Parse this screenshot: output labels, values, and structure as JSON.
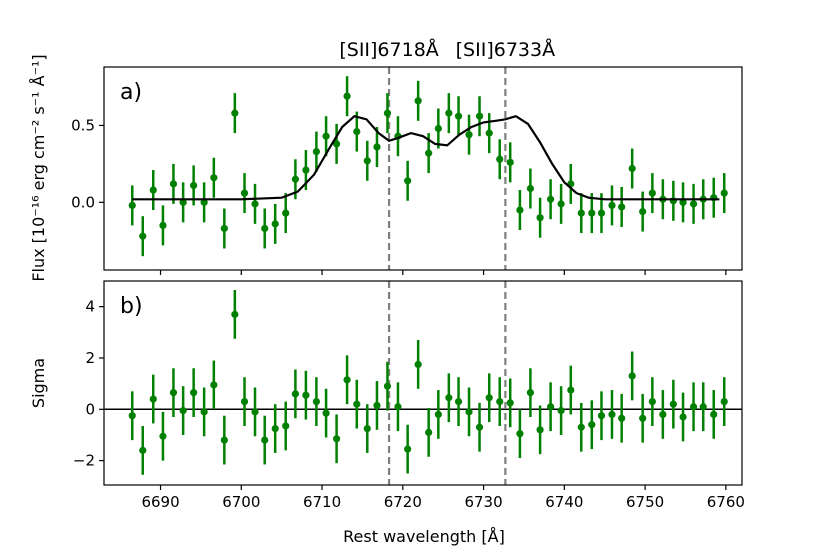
{
  "chart_data": {
    "type": "scatter",
    "xlabel_prefix": "Rest wavelength [",
    "xlabel_unit": "Å",
    "xlabel_suffix": "]",
    "xlim": [
      6683,
      6762
    ],
    "x_ticks": [
      6690,
      6700,
      6710,
      6720,
      6730,
      6740,
      6750,
      6760
    ],
    "x_tick_labels": [
      "6690",
      "6700",
      "6710",
      "6720",
      "6730",
      "6740",
      "6750",
      "6760"
    ],
    "emission_lines": [
      {
        "label": "[SII]6718Å",
        "x": 6718.3
      },
      {
        "label": "[SII]6733Å",
        "x": 6732.7
      }
    ],
    "panels": [
      {
        "panel_label": "a)",
        "ylabel": "Flux [10⁻¹⁶ erg cm⁻² s⁻¹ Å⁻¹]",
        "ylim": [
          -0.44,
          0.88
        ],
        "y_ticks": [
          0.0,
          0.5
        ],
        "y_tick_labels": [
          "0.0",
          "0.5"
        ],
        "points": {
          "x": [
            6686.5,
            6687.8,
            6689.1,
            6690.3,
            6691.6,
            6692.8,
            6694.1,
            6695.4,
            6696.6,
            6697.9,
            6699.2,
            6700.4,
            6701.7,
            6702.9,
            6704.2,
            6705.5,
            6706.7,
            6708.0,
            6709.3,
            6710.5,
            6711.8,
            6713.1,
            6714.3,
            6715.6,
            6716.8,
            6718.1,
            6719.4,
            6720.6,
            6721.9,
            6723.2,
            6724.4,
            6725.7,
            6726.9,
            6728.2,
            6729.5,
            6730.7,
            6732.0,
            6733.3,
            6734.5,
            6735.8,
            6737.0,
            6738.3,
            6739.6,
            6740.8,
            6742.1,
            6743.4,
            6744.6,
            6745.9,
            6747.1,
            6748.4,
            6749.7,
            6750.9,
            6752.2,
            6753.5,
            6754.7,
            6756.0,
            6757.2,
            6758.5,
            6759.8
          ],
          "y": [
            -0.02,
            -0.22,
            0.08,
            -0.15,
            0.12,
            0.0,
            0.11,
            0.0,
            0.16,
            -0.17,
            0.58,
            0.06,
            -0.01,
            -0.17,
            -0.14,
            -0.07,
            0.15,
            0.21,
            0.33,
            0.43,
            0.38,
            0.69,
            0.46,
            0.27,
            0.36,
            0.58,
            0.43,
            0.14,
            0.66,
            0.32,
            0.48,
            0.58,
            0.56,
            0.44,
            0.56,
            0.45,
            0.28,
            0.26,
            -0.05,
            0.09,
            -0.1,
            0.02,
            -0.01,
            0.12,
            -0.07,
            -0.07,
            -0.07,
            -0.02,
            -0.03,
            0.22,
            -0.06,
            0.06,
            0.02,
            0.01,
            0.0,
            -0.01,
            0.02,
            0.03,
            0.06
          ],
          "yerr": 0.13
        },
        "model": {
          "x": [
            6686.5,
            6700,
            6705,
            6707,
            6709,
            6711,
            6712.5,
            6714,
            6715.5,
            6717,
            6718.3,
            6719.5,
            6721,
            6722.5,
            6724,
            6725.5,
            6727,
            6728.5,
            6730,
            6731.5,
            6732.7,
            6734,
            6735.5,
            6737,
            6738.5,
            6740,
            6741.5,
            6743,
            6745,
            6750,
            6759.2
          ],
          "y": [
            0.02,
            0.02,
            0.03,
            0.07,
            0.18,
            0.36,
            0.49,
            0.56,
            0.54,
            0.45,
            0.4,
            0.42,
            0.45,
            0.43,
            0.38,
            0.37,
            0.44,
            0.49,
            0.52,
            0.53,
            0.54,
            0.56,
            0.51,
            0.39,
            0.25,
            0.13,
            0.06,
            0.03,
            0.02,
            0.02,
            0.02
          ]
        }
      },
      {
        "panel_label": "b)",
        "ylabel": "Sigma",
        "ylim": [
          -2.95,
          5.0
        ],
        "y_ticks": [
          -2,
          0,
          2,
          4
        ],
        "y_tick_labels": [
          "−2",
          "0",
          "2",
          "4"
        ],
        "zero_line": 0,
        "points": {
          "x": [
            6686.5,
            6687.8,
            6689.1,
            6690.3,
            6691.6,
            6692.8,
            6694.1,
            6695.4,
            6696.6,
            6697.9,
            6699.2,
            6700.4,
            6701.7,
            6702.9,
            6704.2,
            6705.5,
            6706.7,
            6708.0,
            6709.3,
            6710.5,
            6711.8,
            6713.1,
            6714.3,
            6715.6,
            6716.8,
            6718.1,
            6719.4,
            6720.6,
            6721.9,
            6723.2,
            6724.4,
            6725.7,
            6726.9,
            6728.2,
            6729.5,
            6730.7,
            6732.0,
            6733.3,
            6734.5,
            6735.8,
            6737.0,
            6738.3,
            6739.6,
            6740.8,
            6742.1,
            6743.4,
            6744.6,
            6745.9,
            6747.1,
            6748.4,
            6749.7,
            6750.9,
            6752.2,
            6753.5,
            6754.7,
            6756.0,
            6757.2,
            6758.5,
            6759.8
          ],
          "y": [
            -0.25,
            -1.6,
            0.4,
            -1.05,
            0.65,
            -0.05,
            0.65,
            -0.1,
            0.95,
            -1.2,
            3.7,
            0.3,
            -0.1,
            -1.2,
            -0.75,
            -0.65,
            0.6,
            0.55,
            0.3,
            -0.15,
            -1.15,
            1.15,
            0.2,
            -0.75,
            0.15,
            0.9,
            0.1,
            -1.55,
            1.75,
            -0.9,
            -0.2,
            0.45,
            0.3,
            -0.1,
            -0.7,
            0.45,
            0.3,
            0.25,
            -0.95,
            0.65,
            -0.8,
            0.1,
            -0.05,
            0.75,
            -0.7,
            -0.6,
            -0.25,
            -0.2,
            -0.35,
            1.3,
            -0.35,
            0.3,
            -0.2,
            0.2,
            -0.3,
            0.1,
            0.1,
            -0.2,
            0.3
          ],
          "yerr": 0.95
        }
      }
    ],
    "colors": {
      "points": "#008000",
      "model": "#000000",
      "lines": "#808080",
      "zero_line": "#000000",
      "axes": "#000000"
    }
  }
}
